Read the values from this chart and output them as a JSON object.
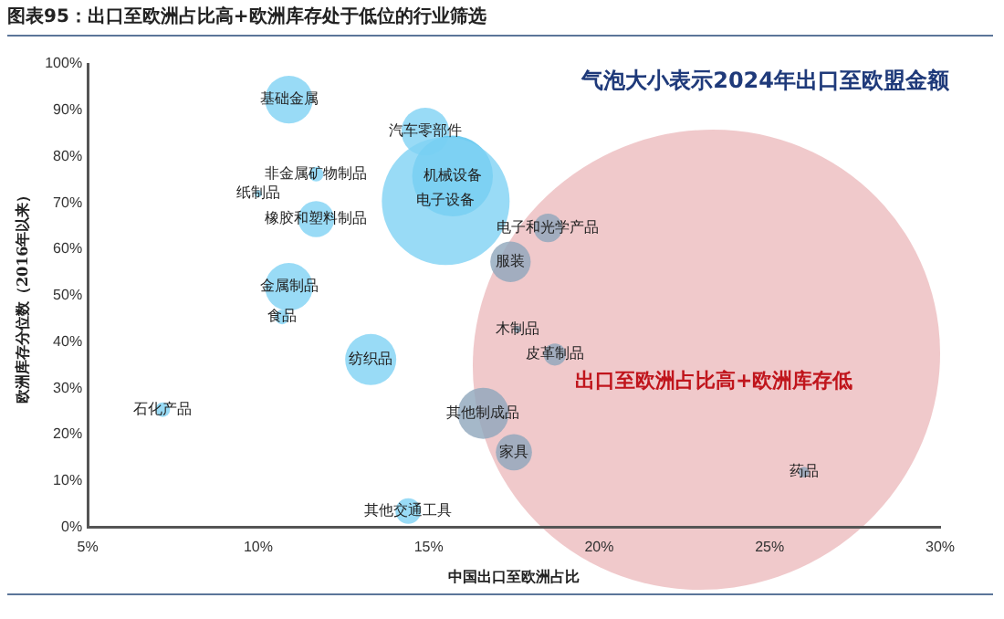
{
  "chart_data": {
    "type": "bubble",
    "title": "图表95：出口至欧洲占比高+欧洲库存处于低位的行业筛选",
    "xlabel": "中国出口至欧洲占比",
    "ylabel": "欧洲库存分位数（2016年以来）",
    "annotations": [
      "气泡大小表示2024年出口至欧盟金额",
      "出口至欧洲占比高+欧洲库存低"
    ],
    "xlim": [
      5,
      30
    ],
    "xticks": [
      {
        "value": 5,
        "label": "5%"
      },
      {
        "value": 10,
        "label": "10%"
      },
      {
        "value": 15,
        "label": "15%"
      },
      {
        "value": 20,
        "label": "20%"
      },
      {
        "value": 25,
        "label": "25%"
      },
      {
        "value": 30,
        "label": "30%"
      }
    ],
    "ylim": [
      0,
      100
    ],
    "yticks": [
      {
        "value": 0,
        "label": "0%"
      },
      {
        "value": 10,
        "label": "10%"
      },
      {
        "value": 20,
        "label": "20%"
      },
      {
        "value": 30,
        "label": "30%"
      },
      {
        "value": 40,
        "label": "40%"
      },
      {
        "value": 50,
        "label": "50%"
      },
      {
        "value": 60,
        "label": "60%"
      },
      {
        "value": 70,
        "label": "70%"
      },
      {
        "value": 80,
        "label": "80%"
      },
      {
        "value": 90,
        "label": "90%"
      },
      {
        "value": 100,
        "label": "100%"
      }
    ],
    "grid": false,
    "legend": false,
    "series": [
      {
        "name": "电子设备",
        "color": "#7fd2f4",
        "x": [
          15.5
        ],
        "values": [
          70.4
        ],
        "sizes": [
          1
        ]
      },
      {
        "name": "机械设备",
        "color": "#4fc0ee",
        "x": [
          15.7
        ],
        "values": [
          75.8
        ],
        "sizes": [
          0.4
        ]
      },
      {
        "name": "基础金属",
        "color": "#7fd2f4",
        "x": [
          10.9
        ],
        "values": [
          92.3
        ],
        "sizes": [
          0.14
        ]
      },
      {
        "name": "汽车零部件",
        "color": "#7fd2f4",
        "x": [
          14.9
        ],
        "values": [
          85.4
        ],
        "sizes": [
          0.14
        ]
      },
      {
        "name": "非金属矿物制品",
        "color": "#7fd2f4",
        "x": [
          11.7
        ],
        "values": [
          76.2
        ],
        "sizes": [
          0.013
        ]
      },
      {
        "name": "纸制品",
        "color": "#7fd2f4",
        "x": [
          10.0
        ],
        "values": [
          72
        ],
        "sizes": [
          0.003
        ]
      },
      {
        "name": "橡胶和塑料制品",
        "color": "#7fd2f4",
        "x": [
          11.7
        ],
        "values": [
          66.5
        ],
        "sizes": [
          0.08
        ]
      },
      {
        "name": "金属制品",
        "color": "#7fd2f4",
        "x": [
          10.9
        ],
        "values": [
          51.9
        ],
        "sizes": [
          0.14
        ]
      },
      {
        "name": "食品",
        "color": "#7fd2f4",
        "x": [
          10.7
        ],
        "values": [
          45.4
        ],
        "sizes": [
          0.013
        ]
      },
      {
        "name": "纺织品",
        "color": "#7fd2f4",
        "x": [
          13.3
        ],
        "values": [
          36.2
        ],
        "sizes": [
          0.16
        ]
      },
      {
        "name": "石化产品",
        "color": "#7fd2f4",
        "x": [
          7.2
        ],
        "values": [
          25.4
        ],
        "sizes": [
          0.013
        ]
      },
      {
        "name": "其他交通工具",
        "color": "#7fd2f4",
        "x": [
          14.4
        ],
        "values": [
          3.5
        ],
        "sizes": [
          0.04
        ]
      },
      {
        "name": "电子和光学产品",
        "color": "#8fa6bc",
        "x": [
          18.5
        ],
        "values": [
          64.6
        ],
        "sizes": [
          0.05
        ]
      },
      {
        "name": "服装",
        "color": "#8fa6bc",
        "x": [
          17.4
        ],
        "values": [
          57.3
        ],
        "sizes": [
          0.1
        ]
      },
      {
        "name": "木制品",
        "color": "#8fa6bc",
        "x": [
          17.6
        ],
        "values": [
          42.7
        ],
        "sizes": [
          0.003
        ]
      },
      {
        "name": "皮革制品",
        "color": "#8fa6bc",
        "x": [
          18.7
        ],
        "values": [
          37.3
        ],
        "sizes": [
          0.03
        ]
      },
      {
        "name": "其他制成品",
        "color": "#8fa6bc",
        "x": [
          16.6
        ],
        "values": [
          24.6
        ],
        "sizes": [
          0.16
        ]
      },
      {
        "name": "家具",
        "color": "#8fa6bc",
        "x": [
          17.5
        ],
        "values": [
          16.2
        ],
        "sizes": [
          0.08
        ]
      },
      {
        "name": "药品",
        "color": "#8fa6bc",
        "x": [
          26.0
        ],
        "values": [
          11.9
        ],
        "sizes": [
          0.007
        ]
      }
    ]
  }
}
